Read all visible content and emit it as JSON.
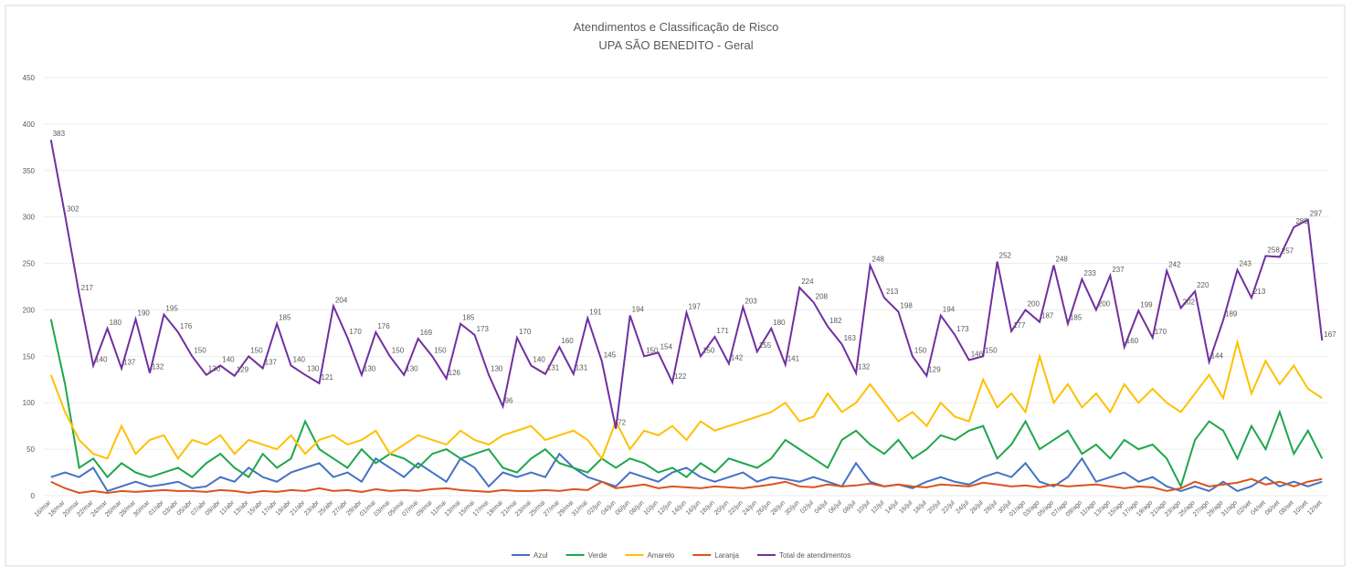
{
  "chart_data": {
    "type": "line",
    "title": "Atendimentos e Classificação de Risco",
    "subtitle": "UPA SÃO BENEDITO - Geral",
    "categories": [
      "16/mar",
      "18/mar",
      "20/mar",
      "22/mar",
      "24/mar",
      "26/mar",
      "28/mar",
      "30/mar",
      "01/abr",
      "03/abr",
      "05/abr",
      "07/abr",
      "09/abr",
      "11/abr",
      "13/abr",
      "15/abr",
      "17/abr",
      "19/abr",
      "21/abr",
      "23/abr",
      "25/abr",
      "27/abr",
      "29/abr",
      "01/mai",
      "03/mai",
      "05/mai",
      "07/mai",
      "09/mai",
      "11/mai",
      "13/mai",
      "15/mai",
      "17/mai",
      "19/mai",
      "21/mai",
      "23/mai",
      "25/mai",
      "27/mai",
      "29/mai",
      "31/mai",
      "02/jun",
      "04/jun",
      "06/jun",
      "08/jun",
      "10/jun",
      "12/jun",
      "14/jun",
      "16/jun",
      "18/jun",
      "20/jun",
      "22/jun",
      "24/jun",
      "26/jun",
      "28/jun",
      "30/jun",
      "02/jul",
      "04/jul",
      "06/jul",
      "08/jul",
      "10/jul",
      "12/jul",
      "14/jul",
      "16/jul",
      "18/jul",
      "20/jul",
      "22/jul",
      "24/jul",
      "26/jul",
      "28/jul",
      "30/jul",
      "01/ago",
      "03/ago",
      "05/ago",
      "07/ago",
      "09/ago",
      "11/ago",
      "13/ago",
      "15/ago",
      "17/ago",
      "19/ago",
      "21/ago",
      "23/ago",
      "25/ago",
      "27/ago",
      "29/ago",
      "31/ago",
      "02/set",
      "04/set",
      "06/set",
      "08/set",
      "10/set",
      "12/set"
    ],
    "series": [
      {
        "name": "Azul",
        "color": "#4472c4",
        "values": [
          20,
          25,
          20,
          30,
          5,
          10,
          15,
          10,
          12,
          15,
          8,
          10,
          20,
          15,
          30,
          20,
          15,
          25,
          30,
          35,
          20,
          25,
          15,
          40,
          30,
          20,
          35,
          25,
          15,
          40,
          30,
          10,
          25,
          20,
          25,
          20,
          45,
          30,
          20,
          15,
          10,
          25,
          20,
          15,
          25,
          30,
          20,
          15,
          20,
          25,
          15,
          20,
          18,
          15,
          20,
          15,
          10,
          35,
          15,
          10,
          12,
          8,
          15,
          20,
          15,
          12,
          20,
          25,
          20,
          35,
          15,
          10,
          20,
          40,
          15,
          20,
          25,
          15,
          20,
          10,
          5,
          10,
          5,
          15,
          5,
          10,
          20,
          10,
          15,
          10,
          15
        ]
      },
      {
        "name": "Verde",
        "color": "#1ea64b",
        "values": [
          190,
          120,
          30,
          40,
          20,
          35,
          25,
          20,
          25,
          30,
          20,
          35,
          45,
          30,
          20,
          45,
          30,
          40,
          80,
          50,
          40,
          30,
          50,
          35,
          45,
          40,
          30,
          45,
          50,
          40,
          45,
          50,
          30,
          25,
          40,
          50,
          35,
          30,
          25,
          40,
          30,
          40,
          35,
          25,
          30,
          20,
          35,
          25,
          40,
          35,
          30,
          40,
          60,
          50,
          40,
          30,
          60,
          70,
          55,
          45,
          60,
          40,
          50,
          65,
          60,
          70,
          75,
          40,
          55,
          80,
          50,
          60,
          70,
          45,
          55,
          40,
          60,
          50,
          55,
          40,
          10,
          60,
          80,
          70,
          40,
          75,
          50,
          90,
          45,
          70,
          40
        ]
      },
      {
        "name": "Amarelo",
        "color": "#ffc000",
        "values": [
          130,
          90,
          60,
          45,
          40,
          75,
          45,
          60,
          65,
          40,
          60,
          55,
          65,
          45,
          60,
          55,
          50,
          65,
          45,
          60,
          65,
          55,
          60,
          70,
          45,
          55,
          65,
          60,
          55,
          70,
          60,
          55,
          65,
          70,
          75,
          60,
          65,
          70,
          60,
          40,
          80,
          50,
          70,
          65,
          75,
          60,
          80,
          70,
          75,
          80,
          85,
          90,
          100,
          80,
          85,
          110,
          90,
          100,
          120,
          100,
          80,
          90,
          75,
          100,
          85,
          80,
          125,
          95,
          110,
          90,
          150,
          100,
          120,
          95,
          110,
          90,
          120,
          100,
          115,
          100,
          90,
          110,
          130,
          105,
          165,
          110,
          145,
          120,
          140,
          115,
          105
        ]
      },
      {
        "name": "Laranja",
        "color": "#d9541e",
        "values": [
          15,
          8,
          3,
          5,
          3,
          5,
          4,
          5,
          6,
          5,
          5,
          4,
          6,
          5,
          3,
          5,
          4,
          6,
          5,
          8,
          5,
          6,
          4,
          7,
          5,
          6,
          5,
          7,
          8,
          6,
          5,
          4,
          6,
          5,
          5,
          6,
          5,
          7,
          6,
          15,
          8,
          10,
          12,
          8,
          10,
          9,
          8,
          10,
          9,
          8,
          10,
          12,
          15,
          10,
          9,
          12,
          10,
          11,
          13,
          10,
          12,
          10,
          9,
          12,
          11,
          10,
          14,
          12,
          10,
          11,
          9,
          12,
          10,
          11,
          12,
          10,
          8,
          10,
          9,
          5,
          8,
          15,
          10,
          12,
          14,
          18,
          12,
          15,
          10,
          15,
          18
        ]
      },
      {
        "name": "Total de atendimentos",
        "color": "#7030a0",
        "values": [
          383,
          302,
          217,
          140,
          180,
          137,
          190,
          132,
          195,
          176,
          150,
          130,
          140,
          129,
          150,
          137,
          185,
          140,
          130,
          121,
          204,
          170,
          130,
          176,
          150,
          130,
          169,
          150,
          126,
          185,
          173,
          130,
          96,
          170,
          140,
          131,
          160,
          131,
          191,
          145,
          72,
          194,
          150,
          154,
          122,
          197,
          150,
          171,
          142,
          203,
          155,
          180,
          141,
          224,
          208,
          182,
          163,
          132,
          248,
          213,
          198,
          150,
          129,
          194,
          173,
          146,
          150,
          252,
          177,
          200,
          187,
          248,
          185,
          233,
          200,
          237,
          160,
          199,
          170,
          242,
          202,
          220,
          144,
          189,
          243,
          213,
          258,
          257,
          289,
          297,
          167
        ]
      }
    ],
    "ylim": [
      0,
      450
    ],
    "yticks": [
      0,
      50,
      100,
      150,
      200,
      250,
      300,
      350,
      400,
      450
    ],
    "grid": true,
    "legend": "bottom"
  }
}
